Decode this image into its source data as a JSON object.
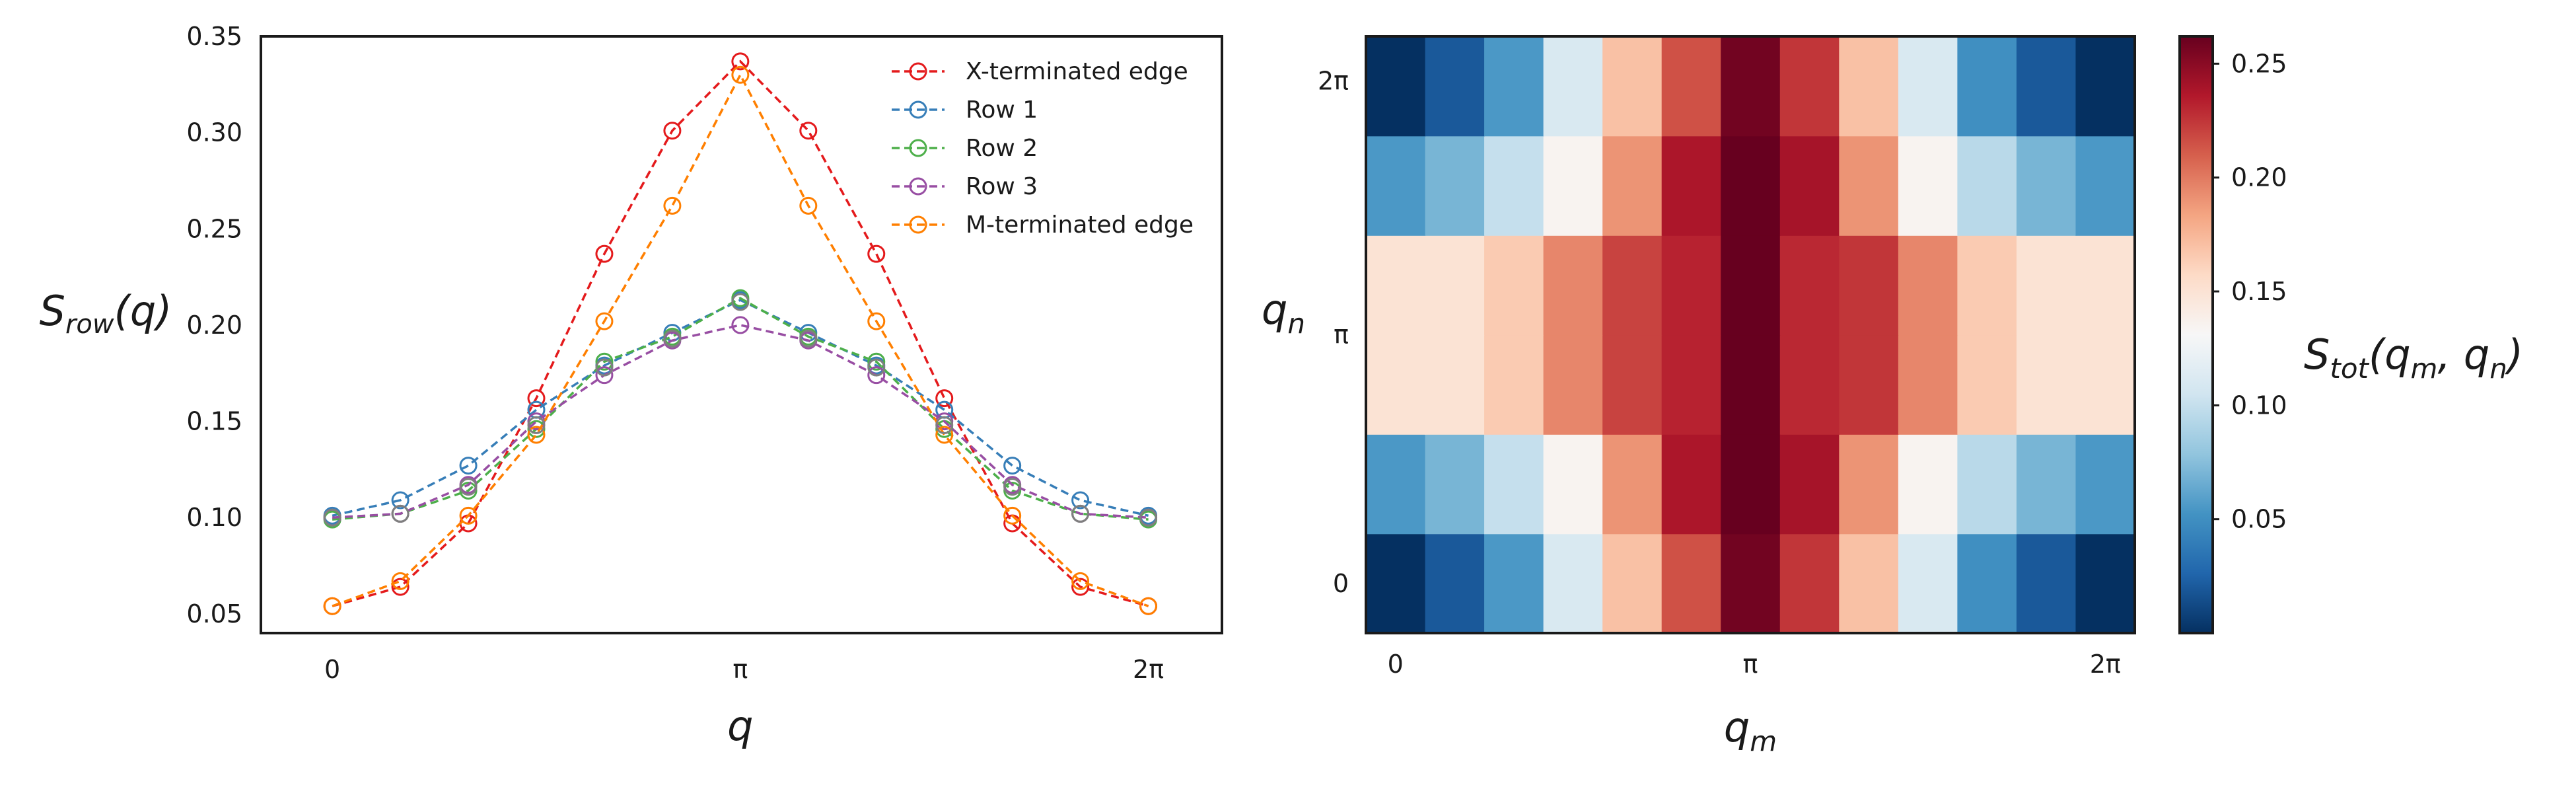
{
  "colors": {
    "x_edge": "#e41a1c",
    "row1": "#377eb8",
    "row2": "#4daf4a",
    "row3": "#984ea3",
    "m_edge": "#ff7f00",
    "gray_marker": "#7f7f7f",
    "frame": "#1a1a1a"
  },
  "chart_data": [
    {
      "type": "line",
      "ylabel_main": "S",
      "ylabel_sub": "row",
      "ylabel_arg": "(q)",
      "xlabel": "q",
      "ylim": [
        0.04,
        0.35
      ],
      "xlim": [
        -0.55,
        6.85
      ],
      "grid": false,
      "legend_position": "top-right",
      "xticks": [
        {
          "value": 0,
          "label": "0"
        },
        {
          "value": 3.1416,
          "label": "π"
        },
        {
          "value": 6.2832,
          "label": "2π"
        }
      ],
      "yticks": [
        {
          "value": 0.05,
          "label": "0.05"
        },
        {
          "value": 0.1,
          "label": "0.10"
        },
        {
          "value": 0.15,
          "label": "0.15"
        },
        {
          "value": 0.2,
          "label": "0.20"
        },
        {
          "value": 0.25,
          "label": "0.25"
        },
        {
          "value": 0.3,
          "label": "0.30"
        },
        {
          "value": 0.35,
          "label": "0.35"
        }
      ],
      "x": [
        0,
        0.5236,
        1.0472,
        1.5708,
        2.0944,
        2.618,
        3.1416,
        3.6652,
        4.1888,
        4.7124,
        5.236,
        5.7596,
        6.2832
      ],
      "series": [
        {
          "name": "X-terminated edge",
          "color_key": "x_edge",
          "values": [
            0.054,
            0.064,
            0.097,
            0.162,
            0.237,
            0.301,
            0.337,
            0.301,
            0.237,
            0.162,
            0.097,
            0.064,
            0.054
          ]
        },
        {
          "name": "Row 1",
          "color_key": "row1",
          "values": [
            0.101,
            0.109,
            0.127,
            0.156,
            0.179,
            0.196,
            0.213,
            0.196,
            0.179,
            0.156,
            0.127,
            0.109,
            0.101
          ]
        },
        {
          "name": "Row 2",
          "color_key": "row2",
          "values": [
            0.099,
            0.102,
            0.114,
            0.146,
            0.181,
            0.194,
            0.214,
            0.194,
            0.181,
            0.146,
            0.114,
            0.102,
            0.099
          ]
        },
        {
          "name": "Row 3",
          "color_key": "row3",
          "values": [
            0.1,
            0.102,
            0.117,
            0.15,
            0.174,
            0.192,
            0.2,
            0.192,
            0.174,
            0.15,
            0.117,
            0.102,
            0.1
          ]
        },
        {
          "name": "M-terminated edge",
          "color_key": "m_edge",
          "values": [
            0.054,
            0.067,
            0.101,
            0.143,
            0.202,
            0.262,
            0.33,
            0.262,
            0.202,
            0.143,
            0.101,
            0.067,
            0.054
          ]
        }
      ],
      "gray_overlay_values": [
        0.1,
        0.102,
        0.116,
        0.148,
        0.178,
        0.193,
        0.212,
        0.193,
        0.178,
        0.148,
        0.116,
        0.102,
        0.1
      ]
    },
    {
      "type": "heatmap",
      "xlabel_main": "q",
      "xlabel_sub": "m",
      "ylabel_main": "q",
      "ylabel_sub": "n",
      "colorbar_label_main": "S",
      "colorbar_label_sub": "tot",
      "colorbar_label_arg": "(q",
      "colorbar_label_arg_sub1": "m",
      "colorbar_label_arg_mid": ", q",
      "colorbar_label_arg_sub2": "n",
      "colorbar_label_arg_end": ")",
      "xticks": [
        {
          "col": 0.5,
          "label": "0"
        },
        {
          "col": 6.5,
          "label": "π"
        },
        {
          "col": 12.5,
          "label": "2π"
        }
      ],
      "yticks": [
        {
          "row": 0.5,
          "label": "0"
        },
        {
          "row": 3.0,
          "label": "π"
        },
        {
          "row": 5.55,
          "label": "2π"
        }
      ],
      "colorbar_ticks": [
        {
          "value": 0.05,
          "label": "0.05"
        },
        {
          "value": 0.1,
          "label": "0.10"
        },
        {
          "value": 0.15,
          "label": "0.15"
        },
        {
          "value": 0.2,
          "label": "0.20"
        },
        {
          "value": 0.25,
          "label": "0.25"
        }
      ],
      "vmin": 0.0,
      "vmax": 0.262,
      "rows_bottom_to_top": [
        [
          0.0,
          0.02,
          0.055,
          0.11,
          0.17,
          0.215,
          0.258,
          0.225,
          0.17,
          0.11,
          0.05,
          0.02,
          0.0
        ],
        [
          0.055,
          0.07,
          0.1,
          0.135,
          0.19,
          0.238,
          0.262,
          0.24,
          0.19,
          0.135,
          0.095,
          0.07,
          0.055
        ],
        [
          0.15,
          0.15,
          0.165,
          0.195,
          0.22,
          0.232,
          0.262,
          0.23,
          0.225,
          0.195,
          0.165,
          0.15,
          0.15
        ],
        [
          0.15,
          0.15,
          0.165,
          0.195,
          0.22,
          0.232,
          0.262,
          0.23,
          0.225,
          0.195,
          0.165,
          0.15,
          0.15
        ],
        [
          0.055,
          0.07,
          0.1,
          0.135,
          0.19,
          0.238,
          0.262,
          0.24,
          0.19,
          0.135,
          0.095,
          0.07,
          0.055
        ],
        [
          0.0,
          0.02,
          0.055,
          0.11,
          0.17,
          0.215,
          0.258,
          0.225,
          0.17,
          0.11,
          0.05,
          0.02,
          0.0
        ]
      ]
    }
  ]
}
